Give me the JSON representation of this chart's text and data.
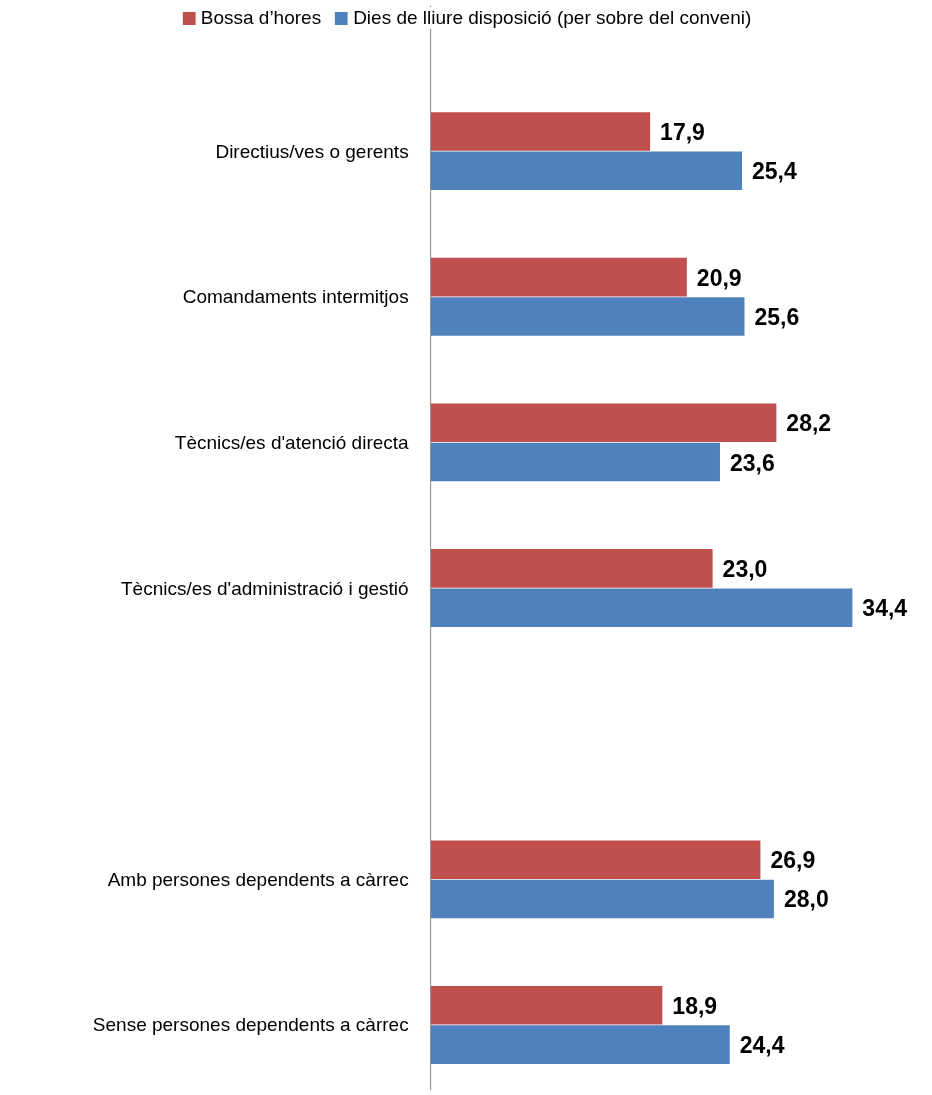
{
  "chart_data": {
    "type": "bar",
    "orientation": "horizontal",
    "categories": [
      "Directius/ves o gerents",
      "Comandaments intermitjos",
      "Tècnics/es d'atenció directa",
      "Tècnics/es d'administració i gestió",
      null,
      "Amb persones dependents a càrrec",
      "Sense persones dependents a càrrec"
    ],
    "series": [
      {
        "name": "Bossa d’hores",
        "color": "#c0504d",
        "values": [
          17.9,
          20.9,
          28.2,
          23.0,
          null,
          26.9,
          18.9
        ],
        "value_labels": [
          "17,9",
          "20,9",
          "28,2",
          "23,0",
          null,
          "26,9",
          "18,9"
        ]
      },
      {
        "name": "Dies de lliure disposició (per sobre del conveni)",
        "color": "#4f81bd",
        "values": [
          25.4,
          25.6,
          23.6,
          34.4,
          null,
          28.0,
          24.4
        ],
        "value_labels": [
          "25,4",
          "25,6",
          "23,6",
          "34,4",
          null,
          "28,0",
          "24,4"
        ]
      }
    ],
    "grid": false,
    "legend": "top"
  }
}
